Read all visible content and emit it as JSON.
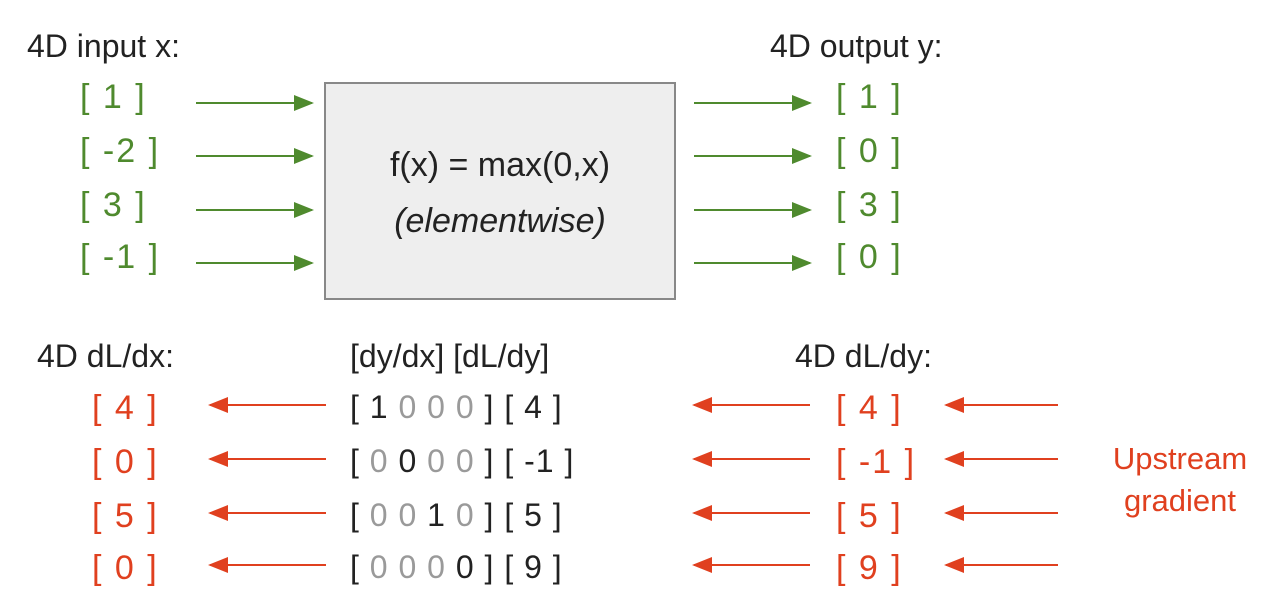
{
  "top": {
    "input_title": "4D input x:",
    "output_title": "4D output y:",
    "inputs": [
      "[ 1 ]",
      "[ -2 ]",
      "[ 3 ]",
      "[ -1 ]"
    ],
    "outputs": [
      "[ 1 ]",
      "[ 0 ]",
      "[ 3 ]",
      "[ 0 ]"
    ],
    "function": "f(x) = max(0,x)",
    "function_note": "(elementwise)"
  },
  "bottom": {
    "dldx_title": "4D dL/dx:",
    "middle_title": "[dy/dx] [dL/dy]",
    "dldy_title": "4D dL/dy:",
    "dldx": [
      "[ 4 ]",
      "[ 0 ]",
      "[ 5 ]",
      "[ 0 ]"
    ],
    "jacobian": [
      [
        "1",
        "0",
        "0",
        "0"
      ],
      [
        "0",
        "0",
        "0",
        "0"
      ],
      [
        "0",
        "0",
        "1",
        "0"
      ],
      [
        "0",
        "0",
        "0",
        "0"
      ]
    ],
    "jacobian_dark": [
      [
        true,
        false,
        false,
        false
      ],
      [
        false,
        true,
        false,
        false
      ],
      [
        false,
        false,
        true,
        false
      ],
      [
        false,
        false,
        false,
        true
      ]
    ],
    "upstream_vec": [
      "[ 4 ]",
      "[ -1 ]",
      "[ 5 ]",
      "[ 9 ]"
    ],
    "dldy": [
      "[ 4 ]",
      "[ -1 ]",
      "[ 5 ]",
      "[ 9 ]"
    ],
    "upstream_label_1": "Upstream",
    "upstream_label_2": "gradient"
  },
  "colors": {
    "green": "#4f8a2e",
    "red": "#e0401f",
    "box_fill": "#eeeeee",
    "gray": "#9a9a9a"
  }
}
